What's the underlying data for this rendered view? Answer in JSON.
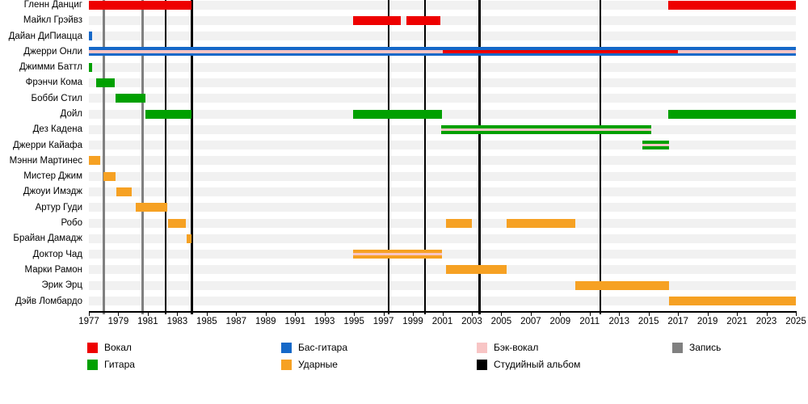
{
  "chart_data": {
    "type": "timeline",
    "title": "",
    "x_axis": {
      "min": 1977,
      "max": 2025,
      "ticks": [
        1977,
        1979,
        1981,
        1983,
        1985,
        1987,
        1989,
        1991,
        1993,
        1995,
        1997,
        1999,
        2001,
        2003,
        2005,
        2007,
        2009,
        2011,
        2013,
        2015,
        2017,
        2019,
        2021,
        2023,
        2025
      ]
    },
    "colors": {
      "vocals": "#ee0000",
      "guitar": "#00a000",
      "bass": "#1568c8",
      "drums": "#f6a123",
      "backing_vocals": "#f8c5c5",
      "studio_album": "#000000",
      "recording": "#808080",
      "track_band": "#f1f1f1"
    },
    "members": [
      {
        "name": "Гленн Данциг",
        "bars": [
          {
            "start": 1977.0,
            "end": 1983.95,
            "role": "vocals"
          },
          {
            "start": 2016.35,
            "end": 2025.0,
            "role": "vocals"
          }
        ]
      },
      {
        "name": "Майкл Грэйвз",
        "bars": [
          {
            "start": 1994.95,
            "end": 1998.2,
            "role": "vocals"
          },
          {
            "start": 1998.55,
            "end": 2000.85,
            "role": "vocals"
          }
        ]
      },
      {
        "name": "Дайан ДиПиацца",
        "bars": [
          {
            "start": 1977.0,
            "end": 1977.2,
            "role": "bass"
          }
        ]
      },
      {
        "name": "Джерри Онли",
        "bars": [
          {
            "start": 1977.0,
            "end": 2025.0,
            "role": "bass",
            "stripes": [
              {
                "start": 1977.0,
                "end": 2001.0,
                "role": "backing_vocals"
              },
              {
                "start": 2001.0,
                "end": 2017.0,
                "role": "vocals"
              },
              {
                "start": 2017.0,
                "end": 2025.0,
                "role": "backing_vocals"
              }
            ]
          }
        ]
      },
      {
        "name": "Джимми Баттл",
        "bars": [
          {
            "start": 1977.0,
            "end": 1977.2,
            "role": "guitar"
          }
        ]
      },
      {
        "name": "Фрэнчи Кома",
        "bars": [
          {
            "start": 1977.5,
            "end": 1978.75,
            "role": "guitar"
          }
        ]
      },
      {
        "name": "Бобби Стил",
        "bars": [
          {
            "start": 1978.8,
            "end": 1980.85,
            "role": "guitar"
          }
        ]
      },
      {
        "name": "Дойл",
        "bars": [
          {
            "start": 1980.85,
            "end": 1983.95,
            "role": "guitar"
          },
          {
            "start": 1994.95,
            "end": 2001.0,
            "role": "guitar"
          },
          {
            "start": 2016.35,
            "end": 2025.0,
            "role": "guitar"
          }
        ]
      },
      {
        "name": "Дез Кадена",
        "bars": [
          {
            "start": 2000.9,
            "end": 2015.2,
            "role": "guitar",
            "stripes": [
              {
                "start": 2000.9,
                "end": 2015.2,
                "role": "backing_vocals"
              }
            ]
          }
        ]
      },
      {
        "name": "Джерри Кайафа",
        "bars": [
          {
            "start": 2014.6,
            "end": 2016.4,
            "role": "guitar",
            "stripes": [
              {
                "start": 2014.6,
                "end": 2016.4,
                "role": "backing_vocals"
              }
            ]
          }
        ]
      },
      {
        "name": "Мэнни Мартинес",
        "bars": [
          {
            "start": 1977.0,
            "end": 1977.75,
            "role": "drums"
          }
        ]
      },
      {
        "name": "Мистер Джим",
        "bars": [
          {
            "start": 1978.0,
            "end": 1978.8,
            "role": "drums"
          }
        ]
      },
      {
        "name": "Джоуи Имэдж",
        "bars": [
          {
            "start": 1978.85,
            "end": 1979.9,
            "role": "drums"
          }
        ]
      },
      {
        "name": "Артур Гуди",
        "bars": [
          {
            "start": 1980.2,
            "end": 1982.3,
            "role": "drums"
          }
        ]
      },
      {
        "name": "Робо",
        "bars": [
          {
            "start": 1982.4,
            "end": 1983.6,
            "role": "drums"
          },
          {
            "start": 2001.25,
            "end": 2003.0,
            "role": "drums"
          },
          {
            "start": 2005.35,
            "end": 2010.05,
            "role": "drums"
          }
        ]
      },
      {
        "name": "Брайан Дамадж",
        "bars": [
          {
            "start": 1983.65,
            "end": 1983.97,
            "role": "drums"
          }
        ]
      },
      {
        "name": "Доктор Чад",
        "bars": [
          {
            "start": 1994.95,
            "end": 2001.0,
            "role": "drums",
            "stripes": [
              {
                "start": 1994.95,
                "end": 2001.0,
                "role": "backing_vocals"
              }
            ]
          }
        ]
      },
      {
        "name": "Марки Рамон",
        "bars": [
          {
            "start": 2001.25,
            "end": 2005.35,
            "role": "drums"
          }
        ]
      },
      {
        "name": "Эрик Эрц",
        "bars": [
          {
            "start": 2010.05,
            "end": 2016.4,
            "role": "drums"
          }
        ]
      },
      {
        "name": "Дэйв Ломбардо",
        "bars": [
          {
            "start": 2016.4,
            "end": 2025.0,
            "role": "drums"
          }
        ]
      }
    ],
    "events": [
      {
        "year": 1978.0,
        "type": "recording"
      },
      {
        "year": 1980.6,
        "type": "recording"
      },
      {
        "year": 1982.2,
        "type": "studio_album"
      },
      {
        "year": 1983.97,
        "type": "studio_album"
      },
      {
        "year": 1997.35,
        "type": "studio_album"
      },
      {
        "year": 1999.8,
        "type": "studio_album"
      },
      {
        "year": 2003.5,
        "type": "studio_album"
      },
      {
        "year": 2011.7,
        "type": "studio_album"
      }
    ],
    "legend": [
      {
        "label": "Вокал",
        "color": "vocals",
        "col": 0,
        "row": 0
      },
      {
        "label": "Гитара",
        "color": "guitar",
        "col": 0,
        "row": 1
      },
      {
        "label": "Бас-гитара",
        "color": "bass",
        "col": 1,
        "row": 0
      },
      {
        "label": "Ударные",
        "color": "drums",
        "col": 1,
        "row": 1
      },
      {
        "label": "Бэк-вокал",
        "color": "backing_vocals",
        "col": 2,
        "row": 0
      },
      {
        "label": "Студийный альбом",
        "color": "studio_album",
        "col": 2,
        "row": 1
      },
      {
        "label": "Запись",
        "color": "recording",
        "col": 3,
        "row": 0
      }
    ]
  }
}
